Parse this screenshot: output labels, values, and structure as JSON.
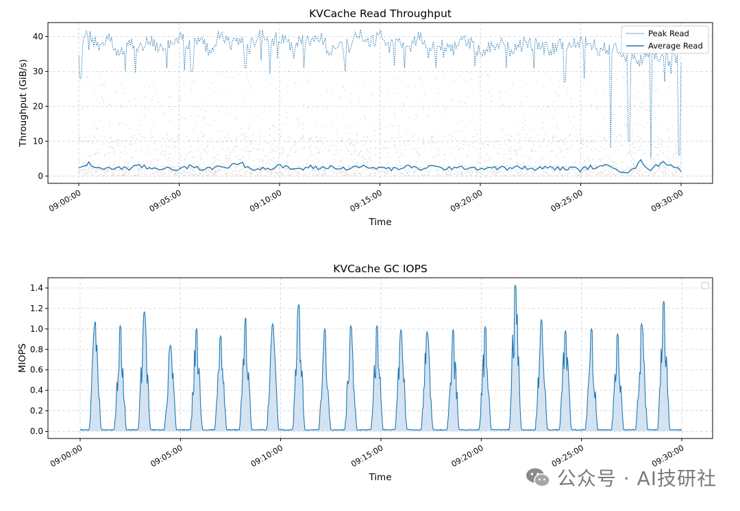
{
  "watermark": {
    "text": "公众号 · AI技研社",
    "icon": "wechat-icon"
  },
  "colors": {
    "line": "#1f77b4",
    "fill": "#cfe0f0",
    "grid": "#d0d0d0",
    "axis": "#000000"
  },
  "chart_data": [
    {
      "type": "line",
      "title": "KVCache Read Throughput",
      "xlabel": "Time",
      "ylabel": "Throughput (GiB/s)",
      "x_range_min": [
        0,
        30
      ],
      "ylim": [
        -2.1,
        44
      ],
      "xticks": [
        0,
        5,
        10,
        15,
        20,
        25,
        30
      ],
      "xtick_labels": [
        "09:00:00",
        "09:05:00",
        "09:10:00",
        "09:15:00",
        "09:20:00",
        "09:25:00",
        "09:30:00"
      ],
      "yticks": [
        0,
        10,
        20,
        30,
        40
      ],
      "ytick_labels": [
        "0",
        "10",
        "20",
        "30",
        "40"
      ],
      "grid": true,
      "legend": {
        "position": "top-right",
        "entries": [
          "Peak Read",
          "Average Read"
        ]
      },
      "series": [
        {
          "name": "Peak Read",
          "style": "dotted",
          "x": [
            0,
            0.5,
            1,
            1.5,
            2,
            2.5,
            3,
            3.5,
            4,
            4.5,
            5,
            5.5,
            6,
            6.5,
            7,
            7.5,
            8,
            8.5,
            9,
            9.5,
            10,
            10.5,
            11,
            11.5,
            12,
            12.5,
            13,
            13.5,
            14,
            14.5,
            15,
            15.5,
            16,
            16.5,
            17,
            17.5,
            18,
            18.5,
            19,
            19.5,
            20,
            20.5,
            21,
            21.5,
            22,
            22.5,
            23,
            23.5,
            24,
            24.5,
            25,
            25.5,
            26,
            26.5,
            27,
            27.5,
            28,
            28.5,
            29,
            29.5,
            30
          ],
          "values": [
            36,
            41,
            37,
            39,
            35,
            38,
            36,
            39,
            37,
            38,
            40,
            37,
            39,
            36,
            40,
            38,
            39,
            37,
            41,
            38,
            40,
            37,
            39,
            38,
            40,
            36,
            39,
            37,
            41,
            38,
            40,
            37,
            39,
            38,
            40,
            36,
            38,
            37,
            39,
            38,
            36,
            37,
            38,
            36,
            39,
            38,
            37,
            36,
            38,
            37,
            39,
            38,
            36,
            37,
            35,
            34,
            33,
            36,
            34,
            35,
            33
          ],
          "dips": [
            [
              0.1,
              28
            ],
            [
              2.3,
              30
            ],
            [
              4.4,
              31
            ],
            [
              5.6,
              30
            ],
            [
              8.3,
              31
            ],
            [
              11.2,
              31
            ],
            [
              13.3,
              30
            ],
            [
              16.2,
              31
            ],
            [
              17.8,
              31
            ],
            [
              21.3,
              31
            ],
            [
              24.2,
              27
            ],
            [
              25.2,
              28
            ],
            [
              26.5,
              8
            ],
            [
              27.4,
              10
            ],
            [
              28.5,
              5
            ],
            [
              29.2,
              27
            ],
            [
              29.9,
              6
            ]
          ]
        },
        {
          "name": "Average Read",
          "style": "solid",
          "x": [
            0,
            0.5,
            1,
            1.5,
            2,
            2.5,
            3,
            3.5,
            4,
            4.5,
            5,
            5.5,
            6,
            6.5,
            7,
            7.5,
            8,
            8.5,
            9,
            9.5,
            10,
            10.5,
            11,
            11.5,
            12,
            12.5,
            13,
            13.5,
            14,
            14.5,
            15,
            15.5,
            16,
            16.5,
            17,
            17.5,
            18,
            18.5,
            19,
            19.5,
            20,
            20.5,
            21,
            21.5,
            22,
            22.5,
            23,
            23.5,
            24,
            24.5,
            25,
            25.5,
            26,
            26.5,
            27,
            27.5,
            28,
            28.5,
            29,
            29.5,
            30
          ],
          "values": [
            1.8,
            3.5,
            2.4,
            2.0,
            2.6,
            1.9,
            3.0,
            2.2,
            2.1,
            2.5,
            1.8,
            2.7,
            2.3,
            1.9,
            2.9,
            2.6,
            4.0,
            2.2,
            2.4,
            2.0,
            2.8,
            2.3,
            1.9,
            2.6,
            2.2,
            2.7,
            2.0,
            2.4,
            2.9,
            2.1,
            2.5,
            1.9,
            2.3,
            2.6,
            2.0,
            2.8,
            2.2,
            2.4,
            2.1,
            2.7,
            2.0,
            2.5,
            2.3,
            2.1,
            2.6,
            1.9,
            2.2,
            2.5,
            2.0,
            2.3,
            1.8,
            2.6,
            2.4,
            3.2,
            1.5,
            1.2,
            4.2,
            1.8,
            3.8,
            3.5,
            1.5
          ]
        }
      ]
    },
    {
      "type": "area",
      "title": "KVCache GC IOPS",
      "xlabel": "Time",
      "ylabel": "MIOPS",
      "x_range_min": [
        0,
        30
      ],
      "ylim": [
        -0.07,
        1.5
      ],
      "xticks": [
        0,
        5,
        10,
        15,
        20,
        25,
        30
      ],
      "xtick_labels": [
        "09:00:00",
        "09:05:00",
        "09:10:00",
        "09:15:00",
        "09:20:00",
        "09:25:00",
        "09:30:00"
      ],
      "yticks": [
        0,
        0.2,
        0.4,
        0.6,
        0.8,
        1.0,
        1.2,
        1.4
      ],
      "ytick_labels": [
        "0.0",
        "0.2",
        "0.4",
        "0.6",
        "0.8",
        "1.0",
        "1.2",
        "1.4"
      ],
      "grid": true,
      "legend": {
        "position": "top-right",
        "entries": []
      },
      "series": [
        {
          "name": "",
          "peaks": [
            {
              "t": 0.75,
              "h": 1.07
            },
            {
              "t": 2.0,
              "h": 1.03
            },
            {
              "t": 3.2,
              "h": 1.17
            },
            {
              "t": 4.5,
              "h": 0.84
            },
            {
              "t": 5.8,
              "h": 1.0
            },
            {
              "t": 7.0,
              "h": 0.93
            },
            {
              "t": 8.25,
              "h": 1.11
            },
            {
              "t": 9.6,
              "h": 1.05
            },
            {
              "t": 10.9,
              "h": 1.24
            },
            {
              "t": 12.2,
              "h": 1.0
            },
            {
              "t": 13.5,
              "h": 1.03
            },
            {
              "t": 14.8,
              "h": 1.03
            },
            {
              "t": 16.0,
              "h": 0.99
            },
            {
              "t": 17.3,
              "h": 0.97
            },
            {
              "t": 18.6,
              "h": 0.99
            },
            {
              "t": 20.2,
              "h": 1.02
            },
            {
              "t": 21.7,
              "h": 1.43
            },
            {
              "t": 23.0,
              "h": 1.09
            },
            {
              "t": 24.2,
              "h": 0.98
            },
            {
              "t": 25.5,
              "h": 1.0
            },
            {
              "t": 26.8,
              "h": 0.95
            },
            {
              "t": 28.0,
              "h": 1.05
            },
            {
              "t": 29.1,
              "h": 1.27
            }
          ]
        }
      ]
    }
  ]
}
